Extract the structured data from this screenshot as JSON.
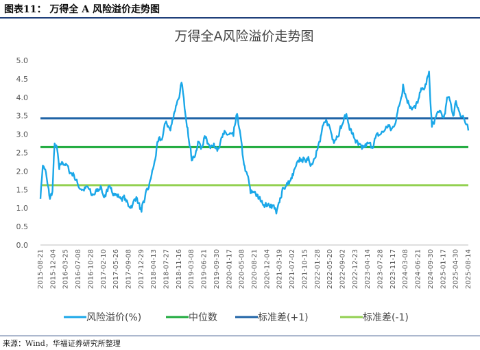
{
  "header": {
    "title": "图表11： 万得全 A 风险溢价走势图"
  },
  "footer": {
    "source": "来源：Wind，华福证券研究所整理"
  },
  "colors": {
    "risk": "#1aa7e8",
    "median": "#1daa3c",
    "upper": "#1f63a6",
    "lower": "#92d050"
  },
  "chart_data": {
    "type": "line",
    "title": "万得全A风险溢价走势图",
    "xlabel": "",
    "ylabel": "",
    "ylim": [
      0,
      5
    ],
    "yticks": [
      "0.0",
      "0.5",
      "1.0",
      "1.5",
      "2.0",
      "2.5",
      "3.0",
      "3.5",
      "4.0",
      "4.5",
      "5.0"
    ],
    "x_range": [
      "2015-08-21",
      "2025-08-14"
    ],
    "x_tick_labels": [
      "2015-08-21",
      "2015-12-04",
      "2016-03-25",
      "2016-07-08",
      "2016-10-28",
      "2017-02-10",
      "2017-05-26",
      "2017-09-08",
      "2017-12-29",
      "2018-04-13",
      "2018-07-27",
      "2018-11-16",
      "2019-03-08",
      "2019-06-21",
      "2019-09-30",
      "2020-01-17",
      "2020-05-08",
      "2020-08-21",
      "2020-12-04",
      "2021-03-19",
      "2021-07-02",
      "2021-10-15",
      "2022-01-28",
      "2022-05-20",
      "2022-09-02",
      "2022-12-23",
      "2023-04-14",
      "2023-07-28",
      "2023-11-17",
      "2024-03-08",
      "2024-06-21",
      "2024-09-30",
      "2025-01-17",
      "2025-04-30",
      "2025-08-14"
    ],
    "grid": false,
    "legend_position": "bottom",
    "series": [
      {
        "name": "风险溢价(%)",
        "x": [
          "2015-08-21",
          "2015-09-10",
          "2015-10-01",
          "2015-10-20",
          "2015-11-10",
          "2015-12-01",
          "2015-12-20",
          "2016-01-10",
          "2016-01-28",
          "2016-02-20",
          "2016-03-25",
          "2016-04-20",
          "2016-06-01",
          "2016-07-08",
          "2016-08-20",
          "2016-10-01",
          "2016-10-28",
          "2016-12-15",
          "2017-01-15",
          "2017-02-10",
          "2017-03-15",
          "2017-04-15",
          "2017-05-26",
          "2017-07-01",
          "2017-08-15",
          "2017-09-08",
          "2017-10-15",
          "2017-11-15",
          "2017-12-29",
          "2018-01-20",
          "2018-02-09",
          "2018-03-01",
          "2018-04-13",
          "2018-05-20",
          "2018-06-20",
          "2018-07-27",
          "2018-09-01",
          "2018-10-01",
          "2018-10-30",
          "2018-11-16",
          "2018-12-05",
          "2018-12-31",
          "2019-01-20",
          "2019-02-20",
          "2019-03-08",
          "2019-04-08",
          "2019-05-01",
          "2019-05-20",
          "2019-06-21",
          "2019-07-20",
          "2019-08-15",
          "2019-09-30",
          "2019-10-30",
          "2019-12-01",
          "2020-01-17",
          "2020-02-20",
          "2020-03-23",
          "2020-04-15",
          "2020-05-08",
          "2020-06-01",
          "2020-06-30",
          "2020-07-15",
          "2020-08-21",
          "2020-09-20",
          "2020-10-20",
          "2020-12-04",
          "2021-01-05",
          "2021-02-10",
          "2021-02-20",
          "2021-03-19",
          "2021-04-15",
          "2021-05-15",
          "2021-07-02",
          "2021-08-01",
          "2021-09-01",
          "2021-10-15",
          "2021-11-15",
          "2021-12-20",
          "2022-01-28",
          "2022-02-28",
          "2022-03-15",
          "2022-04-26",
          "2022-05-20",
          "2022-06-20",
          "2022-07-20",
          "2022-09-02",
          "2022-10-10",
          "2022-10-31",
          "2022-11-30",
          "2022-12-23",
          "2023-01-20",
          "2023-02-20",
          "2023-04-14",
          "2023-05-15",
          "2023-06-15",
          "2023-07-28",
          "2023-09-01",
          "2023-10-01",
          "2023-10-23",
          "2023-11-17",
          "2023-12-20",
          "2024-01-20",
          "2024-02-05",
          "2024-03-08",
          "2024-04-10",
          "2024-05-20",
          "2024-06-21",
          "2024-07-20",
          "2024-08-20",
          "2024-09-13",
          "2024-09-30",
          "2024-10-08",
          "2024-11-01",
          "2024-12-01",
          "2025-01-17",
          "2025-02-20",
          "2025-03-20",
          "2025-04-07",
          "2025-04-30",
          "2025-05-30",
          "2025-06-30",
          "2025-07-20",
          "2025-08-14"
        ],
        "values": [
          1.25,
          2.15,
          2.05,
          1.65,
          1.25,
          1.45,
          2.75,
          2.6,
          2.05,
          2.25,
          2.2,
          2.0,
          1.9,
          1.6,
          1.5,
          1.55,
          1.35,
          1.45,
          1.6,
          1.3,
          1.45,
          1.55,
          1.35,
          1.3,
          1.25,
          1.05,
          1.1,
          1.3,
          0.9,
          1.15,
          1.5,
          1.55,
          2.15,
          2.8,
          2.85,
          3.35,
          3.1,
          3.55,
          3.9,
          4.0,
          4.4,
          3.7,
          3.2,
          2.65,
          2.3,
          2.55,
          2.8,
          2.6,
          2.95,
          2.75,
          2.7,
          2.65,
          2.75,
          3.0,
          3.0,
          2.95,
          3.55,
          3.1,
          2.45,
          2.0,
          1.75,
          1.4,
          1.45,
          1.25,
          1.2,
          1.05,
          1.1,
          1.0,
          0.85,
          1.15,
          1.55,
          1.6,
          1.8,
          2.1,
          2.25,
          2.35,
          2.3,
          2.2,
          2.55,
          2.8,
          3.1,
          3.35,
          3.2,
          2.85,
          2.95,
          3.25,
          3.55,
          3.25,
          3.0,
          2.85,
          2.7,
          2.6,
          2.75,
          2.65,
          2.9,
          3.0,
          3.1,
          3.25,
          3.1,
          3.2,
          3.6,
          4.0,
          4.35,
          3.95,
          3.75,
          3.7,
          4.0,
          4.25,
          4.35,
          4.7,
          3.6,
          3.2,
          3.4,
          3.6,
          3.45,
          4.0,
          3.8,
          3.5,
          3.9,
          3.6,
          3.5,
          3.3,
          3.1
        ]
      },
      {
        "name": "中位数",
        "values": [
          2.65,
          2.65
        ]
      },
      {
        "name": "标准差(+1)",
        "values": [
          3.43,
          3.43
        ]
      },
      {
        "name": "标准差(-1)",
        "values": [
          1.62,
          1.62
        ]
      }
    ]
  }
}
